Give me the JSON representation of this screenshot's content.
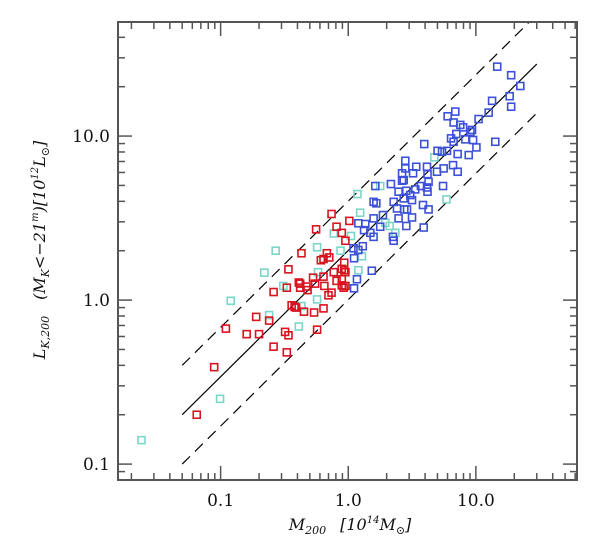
{
  "chart_data": {
    "type": "scatter",
    "title": "",
    "xlabel": "M_200 [10^14 M_sun]",
    "ylabel": "L_K,200 (M_K < -21^m) [10^12 L_sun]",
    "xlabel_parts": {
      "main": "M",
      "sub": "200",
      "unit_open": "[10",
      "unit_sup": "14",
      "unit_main": "M",
      "unit_close": "]",
      "sun": "⊙"
    },
    "ylabel_parts": {
      "main": "L",
      "sub": "K,200",
      "cond_open": "(M",
      "cond_sub": "K",
      "cond_rest": "<−21",
      "cond_sup": "m",
      "cond_close": ")",
      "unit_open": "[10",
      "unit_sup": "12",
      "unit_main": "L",
      "unit_close": "]",
      "sun": "⊙"
    },
    "xscale": "log",
    "yscale": "log",
    "xlim": [
      0.0157,
      62
    ],
    "ylim": [
      0.08,
      49.6
    ],
    "xticks": [
      {
        "value": 0.1,
        "label": "0.1"
      },
      {
        "value": 1.0,
        "label": "1.0"
      },
      {
        "value": 10.0,
        "label": "10.0"
      }
    ],
    "yticks": [
      {
        "value": 0.1,
        "label": "0.1"
      },
      {
        "value": 1.0,
        "label": "1.0"
      },
      {
        "value": 10.0,
        "label": "10.0"
      }
    ],
    "grid": false,
    "legend": null,
    "colors": {
      "red": "#d8141f",
      "blue": "#3c50d8",
      "cyan": "#7cd6c8",
      "line": "#000000",
      "axis": "#555555"
    },
    "lines": [
      {
        "name": "fit",
        "style": "solid",
        "x": [
          0.05,
          30.0
        ],
        "y": [
          0.2,
          27.5
        ]
      },
      {
        "name": "upper-scatter",
        "style": "dashed",
        "x": [
          0.05,
          30.0
        ],
        "y": [
          0.4,
          55.0
        ]
      },
      {
        "name": "lower-scatter",
        "style": "dashed",
        "x": [
          0.05,
          30.0
        ],
        "y": [
          0.1,
          13.8
        ]
      }
    ],
    "series": [
      {
        "name": "red",
        "color": "#d8141f",
        "points": [
          [
            0.065,
            0.2
          ],
          [
            0.089,
            0.39
          ],
          [
            0.11,
            0.67
          ],
          [
            0.16,
            0.62
          ],
          [
            0.2,
            0.62
          ],
          [
            0.19,
            0.79
          ],
          [
            0.24,
            0.75
          ],
          [
            0.26,
            0.52
          ],
          [
            0.33,
            0.48
          ],
          [
            0.32,
            0.64
          ],
          [
            0.34,
            0.61
          ],
          [
            0.36,
            0.93
          ],
          [
            0.39,
            0.9
          ],
          [
            0.45,
            0.85
          ],
          [
            0.54,
            0.84
          ],
          [
            0.57,
            0.66
          ],
          [
            0.26,
            1.12
          ],
          [
            0.33,
            1.19
          ],
          [
            0.34,
            1.54
          ],
          [
            0.42,
            1.26
          ],
          [
            0.42,
            1.19
          ],
          [
            0.48,
            1.15
          ],
          [
            0.43,
            1.93
          ],
          [
            0.74,
            3.35
          ],
          [
            1.02,
            3.04
          ],
          [
            0.56,
            2.7
          ],
          [
            0.81,
            2.8
          ],
          [
            0.89,
            2.57
          ],
          [
            0.95,
            2.3
          ],
          [
            0.68,
            1.93
          ],
          [
            0.71,
            1.82
          ],
          [
            0.61,
            1.75
          ],
          [
            0.64,
            1.78
          ],
          [
            0.89,
            1.55
          ],
          [
            0.95,
            1.48
          ],
          [
            0.77,
            1.48
          ],
          [
            0.53,
            1.37
          ],
          [
            0.64,
            1.39
          ],
          [
            0.81,
            1.31
          ],
          [
            0.89,
            1.23
          ],
          [
            0.41,
            1.28
          ],
          [
            0.47,
            1.21
          ],
          [
            0.55,
            1.26
          ],
          [
            0.65,
            1.22
          ],
          [
            0.92,
            1.19
          ],
          [
            0.74,
            1.11
          ],
          [
            0.7,
            1.07
          ],
          [
            0.38,
            0.91
          ],
          [
            0.64,
            0.89
          ],
          [
            0.93,
            1.69
          ],
          [
            0.93,
            1.52
          ],
          [
            0.89,
            1.34
          ],
          [
            0.95,
            1.22
          ]
        ]
      },
      {
        "name": "cyan",
        "color": "#7cd6c8",
        "points": [
          [
            0.024,
            0.14
          ],
          [
            0.099,
            0.25
          ],
          [
            0.12,
            0.99
          ],
          [
            0.22,
            1.47
          ],
          [
            0.27,
            2.0
          ],
          [
            0.24,
            0.81
          ],
          [
            0.31,
            1.22
          ],
          [
            0.41,
            0.69
          ],
          [
            0.43,
            0.92
          ],
          [
            0.57,
            1.01
          ],
          [
            0.58,
            1.48
          ],
          [
            0.57,
            2.1
          ],
          [
            0.77,
            2.55
          ],
          [
            0.87,
            2.0
          ],
          [
            1.05,
            2.46
          ],
          [
            1.18,
            4.43
          ],
          [
            1.78,
            4.96
          ],
          [
            1.24,
            3.41
          ],
          [
            1.95,
            2.96
          ],
          [
            2.11,
            2.83
          ],
          [
            2.34,
            2.57
          ],
          [
            1.28,
            1.85
          ],
          [
            1.2,
            1.52
          ],
          [
            4.73,
            7.42
          ],
          [
            5.88,
            4.11
          ]
        ]
      },
      {
        "name": "blue",
        "color": "#3c50d8",
        "points": [
          [
            1.1,
            2.07
          ],
          [
            1.2,
            2.02
          ],
          [
            1.11,
            1.8
          ],
          [
            1.17,
            1.34
          ],
          [
            1.11,
            1.18
          ],
          [
            1.53,
            1.51
          ],
          [
            1.3,
            2.13
          ],
          [
            1.2,
            2.94
          ],
          [
            1.36,
            2.91
          ],
          [
            1.33,
            2.67
          ],
          [
            1.49,
            2.57
          ],
          [
            1.58,
            2.43
          ],
          [
            1.78,
            2.8
          ],
          [
            1.58,
            3.15
          ],
          [
            1.87,
            3.3
          ],
          [
            1.58,
            3.97
          ],
          [
            1.66,
            3.89
          ],
          [
            1.63,
            4.96
          ],
          [
            2.16,
            5.1
          ],
          [
            2.24,
            2.43
          ],
          [
            2.27,
            2.3
          ],
          [
            2.27,
            3.97
          ],
          [
            2.41,
            3.62
          ],
          [
            2.48,
            3.15
          ],
          [
            2.48,
            4.58
          ],
          [
            2.64,
            5.93
          ],
          [
            2.64,
            5.34
          ],
          [
            2.72,
            5.39
          ],
          [
            2.8,
            6.35
          ],
          [
            2.85,
            4.64
          ],
          [
            2.72,
            4.17
          ],
          [
            2.89,
            3.57
          ],
          [
            2.85,
            2.83
          ],
          [
            3.16,
            4.07
          ],
          [
            3.16,
            3.19
          ],
          [
            3.22,
            5.93
          ],
          [
            3.35,
            4.73
          ],
          [
            2.8,
            7.07
          ],
          [
            3.06,
            4.37
          ],
          [
            2.75,
            3.57
          ],
          [
            3.41,
            6.5
          ],
          [
            3.71,
            4.96
          ],
          [
            3.85,
            3.8
          ],
          [
            3.9,
            2.77
          ],
          [
            3.94,
            8.94
          ],
          [
            4.14,
            6.5
          ],
          [
            4.14,
            4.86
          ],
          [
            4.18,
            5.86
          ],
          [
            4.18,
            4.58
          ],
          [
            4.26,
            5.26
          ],
          [
            4.26,
            3.57
          ],
          [
            4.96,
            6.06
          ],
          [
            5.01,
            8.13
          ],
          [
            5.43,
            8.02
          ],
          [
            5.53,
            4.96
          ],
          [
            5.59,
            6.35
          ],
          [
            5.94,
            8.13
          ],
          [
            6.01,
            13.2
          ],
          [
            6.39,
            9.68
          ],
          [
            6.62,
            6.65
          ],
          [
            6.69,
            12.1
          ],
          [
            6.69,
            9.23
          ],
          [
            6.9,
            14.1
          ],
          [
            7.03,
            10.3
          ],
          [
            7.2,
            7.77
          ],
          [
            7.2,
            6.06
          ],
          [
            7.55,
            11.7
          ],
          [
            7.94,
            11.3
          ],
          [
            8.27,
            9.55
          ],
          [
            8.79,
            7.66
          ],
          [
            9.06,
            10.6
          ],
          [
            9.33,
            10.9
          ],
          [
            9.51,
            9.46
          ],
          [
            10.1,
            8.53
          ],
          [
            10.5,
            12.7
          ],
          [
            12.6,
            13.9
          ],
          [
            13.4,
            16.4
          ],
          [
            14.2,
            9.23
          ],
          [
            14.7,
            26.5
          ],
          [
            18.4,
            17.5
          ],
          [
            18.9,
            23.5
          ],
          [
            18.9,
            15.1
          ],
          [
            22.3,
            20.2
          ]
        ]
      }
    ]
  }
}
